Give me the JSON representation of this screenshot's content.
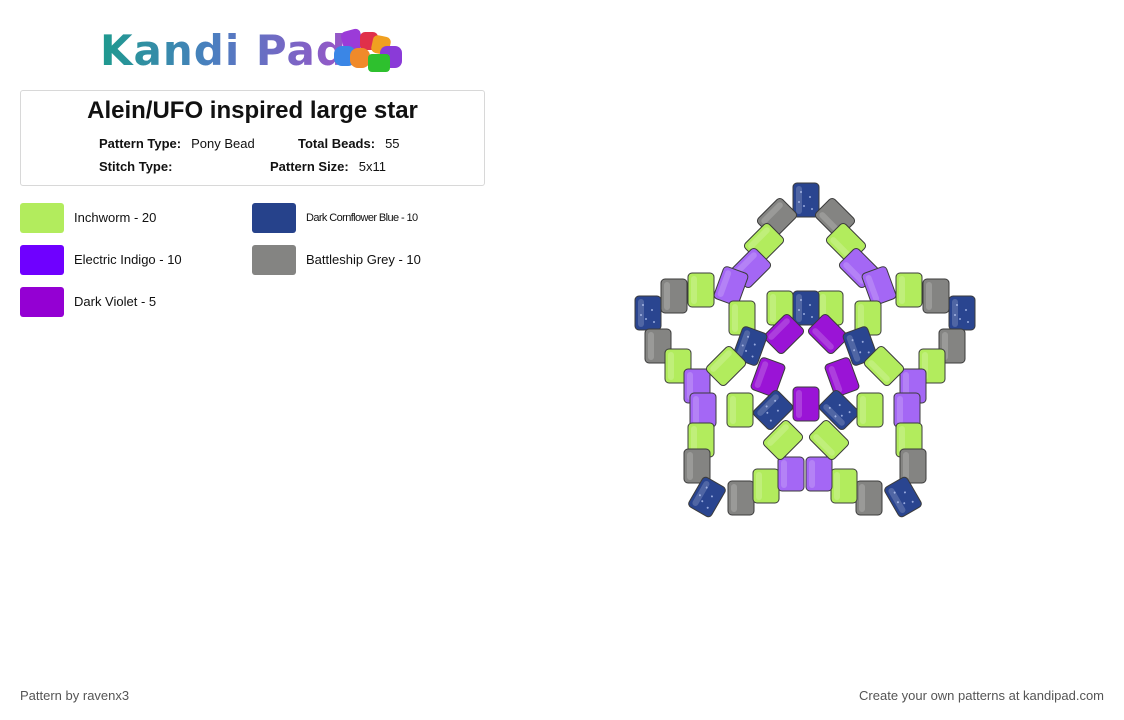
{
  "logo": {
    "text": "Kandi Pad"
  },
  "pattern_info": {
    "title": "Alein/UFO inspired large star",
    "pattern_type_label": "Pattern Type:",
    "pattern_type": "Pony Bead",
    "total_beads_label": "Total Beads:",
    "total_beads": "55",
    "stitch_type_label": "Stitch Type:",
    "stitch_type": "",
    "pattern_size_label": "Pattern Size:",
    "pattern_size": "5x11"
  },
  "legend": [
    {
      "label": "Inchworm - 20",
      "color": "#b2ec5d"
    },
    {
      "label": "Dark Cornflower Blue - 10",
      "color": "#26428b"
    },
    {
      "label": "Electric Indigo - 10",
      "color": "#6f00ff"
    },
    {
      "label": "Battleship Grey - 10",
      "color": "#848482"
    },
    {
      "label": "Dark Violet - 5",
      "color": "#9400d3"
    }
  ],
  "bead_colors": {
    "inchworm": "#b2ec5d",
    "cornflower": "#2a4590",
    "electric_indigo": "#a467f5",
    "grey": "#848482",
    "dark_violet": "#9a14d6"
  },
  "footer": {
    "left": "Pattern by ravenx3",
    "right": "Create your own patterns at kandipad.com"
  }
}
